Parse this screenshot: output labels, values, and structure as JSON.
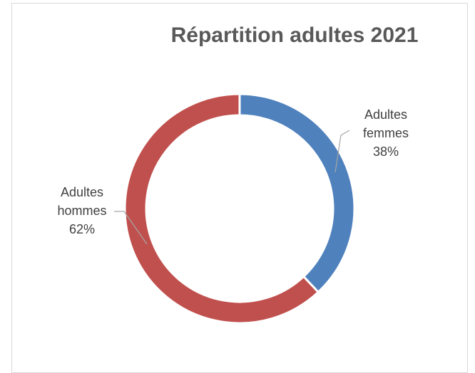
{
  "chart_data": {
    "type": "pie",
    "variant": "doughnut",
    "title": "Répartition adultes 2021",
    "slices": [
      {
        "label_line1": "Adultes",
        "label_line2": "femmes",
        "percent_label": "38%",
        "value": 38,
        "color": "#4f81bd"
      },
      {
        "label_line1": "Adultes",
        "label_line2": "hommes",
        "percent_label": "62%",
        "value": 62,
        "color": "#c0504d"
      }
    ]
  }
}
